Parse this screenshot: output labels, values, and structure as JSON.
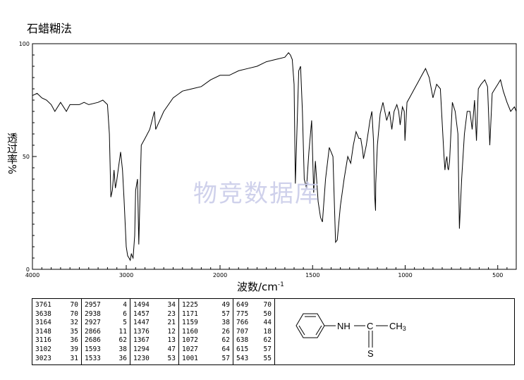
{
  "title": "石蜡糊法",
  "watermark": "物竞数据库",
  "chart_data": {
    "type": "line",
    "xlabel": "波数/cm",
    "xlabel_sup": "-1",
    "ylabel": "透过率%",
    "x_ticks": [
      "4000",
      "3000",
      "2000",
      "1500",
      "1000",
      "500"
    ],
    "y_ticks": [
      "0",
      "50",
      "100"
    ],
    "ylim": [
      0,
      100
    ],
    "xlim": [
      4000,
      400
    ],
    "x_axis": "nonlinear: 4000-2000 compressed, 2000-400 expanded",
    "series": [
      {
        "x": [
          4000,
          3950,
          3900,
          3850,
          3800,
          3761,
          3700,
          3638,
          3600,
          3500,
          3450,
          3400,
          3300,
          3250,
          3200,
          3180,
          3164,
          3148,
          3130,
          3116,
          3102,
          3080,
          3060,
          3040,
          3023,
          3000,
          2985,
          2970,
          2957,
          2945,
          2938,
          2927,
          2910,
          2900,
          2880,
          2866,
          2840,
          2800,
          2750,
          2700,
          2686,
          2600,
          2500,
          2400,
          2300,
          2200,
          2100,
          2000,
          1950,
          1900,
          1850,
          1800,
          1750,
          1700,
          1650,
          1630,
          1620,
          1610,
          1600,
          1595,
          1593,
          1585,
          1575,
          1565,
          1555,
          1545,
          1533,
          1520,
          1505,
          1494,
          1485,
          1470,
          1457,
          1447,
          1430,
          1410,
          1390,
          1376,
          1367,
          1350,
          1330,
          1310,
          1294,
          1280,
          1265,
          1250,
          1240,
          1230,
          1225,
          1210,
          1190,
          1180,
          1171,
          1165,
          1160,
          1159,
          1150,
          1135,
          1120,
          1100,
          1085,
          1072,
          1060,
          1045,
          1035,
          1027,
          1015,
          1005,
          1001,
          990,
          970,
          950,
          930,
          910,
          890,
          870,
          850,
          830,
          810,
          790,
          785,
          780,
          775,
          770,
          766,
          760,
          745,
          730,
          715,
          707,
          695,
          680,
          665,
          650,
          638,
          625,
          615,
          605,
          590,
          570,
          555,
          543,
          530,
          515,
          500,
          485,
          470,
          450,
          430,
          410,
          400
        ],
        "y": [
          77,
          78,
          76,
          75,
          73,
          70,
          74,
          70,
          73,
          73,
          74,
          73,
          74,
          75,
          73,
          60,
          32,
          35,
          44,
          36,
          39,
          46,
          52,
          44,
          31,
          10,
          6,
          5,
          4,
          7,
          6,
          5,
          15,
          35,
          40,
          11,
          55,
          58,
          62,
          70,
          62,
          70,
          76,
          79,
          80,
          81,
          84,
          86,
          86,
          88,
          89,
          90,
          92,
          93,
          94,
          96,
          95,
          93,
          82,
          50,
          38,
          60,
          88,
          90,
          70,
          40,
          36,
          52,
          66,
          34,
          48,
          30,
          23,
          21,
          40,
          54,
          50,
          12,
          13,
          28,
          40,
          50,
          47,
          55,
          61,
          58,
          58,
          53,
          49,
          55,
          66,
          70,
          57,
          33,
          26,
          38,
          55,
          69,
          74,
          66,
          70,
          62,
          70,
          73,
          70,
          64,
          72,
          70,
          57,
          74,
          77,
          80,
          83,
          86,
          89,
          85,
          76,
          82,
          80,
          50,
          44,
          48,
          50,
          45,
          44,
          48,
          74,
          70,
          60,
          18,
          40,
          60,
          70,
          70,
          62,
          75,
          57,
          80,
          82,
          84,
          81,
          55,
          78,
          80,
          82,
          84,
          79,
          74,
          70,
          72,
          70
        ]
      }
    ]
  },
  "peak_table": {
    "columns": [
      [
        [
          "3761",
          "70"
        ],
        [
          "3638",
          "70"
        ],
        [
          "3164",
          "32"
        ],
        [
          "3148",
          "35"
        ],
        [
          "3116",
          "36"
        ],
        [
          "3102",
          "39"
        ],
        [
          "3023",
          "31"
        ]
      ],
      [
        [
          "2957",
          "4"
        ],
        [
          "2938",
          "6"
        ],
        [
          "2927",
          "5"
        ],
        [
          "2866",
          "11"
        ],
        [
          "2686",
          "62"
        ],
        [
          "1593",
          "38"
        ],
        [
          "1533",
          "36"
        ]
      ],
      [
        [
          "1494",
          "34"
        ],
        [
          "1457",
          "23"
        ],
        [
          "1447",
          "21"
        ],
        [
          "1376",
          "12"
        ],
        [
          "1367",
          "13"
        ],
        [
          "1294",
          "47"
        ],
        [
          "1230",
          "53"
        ]
      ],
      [
        [
          "1225",
          "49"
        ],
        [
          "1171",
          "57"
        ],
        [
          "1159",
          "38"
        ],
        [
          "1160",
          "26"
        ],
        [
          "1072",
          "62"
        ],
        [
          "1027",
          "64"
        ],
        [
          "1001",
          "57"
        ]
      ],
      [
        [
          "649",
          "70"
        ],
        [
          "775",
          "50"
        ],
        [
          "766",
          "44"
        ],
        [
          "707",
          "18"
        ],
        [
          "638",
          "62"
        ],
        [
          "615",
          "57"
        ],
        [
          "543",
          "55"
        ]
      ]
    ]
  },
  "structure": {
    "nh_label": "NH",
    "c_label": "C",
    "ch3_label": "CH",
    "ch3_sub": "3",
    "s_label": "S"
  }
}
